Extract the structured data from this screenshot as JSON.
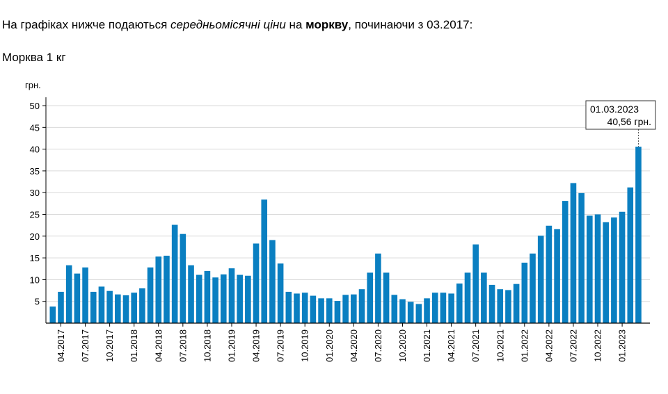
{
  "intro": {
    "part1": "На графіках нижче подаються ",
    "emph": "середньомісячні ціни",
    "part2": " на ",
    "strong": "моркву",
    "part3": ", починаючи з 03.2017:"
  },
  "subtitle": "Морква 1 кг",
  "colors": {
    "bar": "#0a7fc1",
    "grid": "#d9d9d9",
    "axis": "#000000"
  },
  "chart_data": {
    "type": "bar",
    "ylabel": "грн.",
    "ylim": [
      0,
      53.2
    ],
    "yticks": [
      5,
      10,
      15,
      20,
      25,
      30,
      35,
      40,
      45,
      50
    ],
    "grid": true,
    "xticks": [
      "04.2017",
      "07.2017",
      "10.2017",
      "01.2018",
      "04.2018",
      "07.2018",
      "10.2018",
      "01.2019",
      "04.2019",
      "07.2019",
      "10.2019",
      "01.2020",
      "04.2020",
      "07.2020",
      "10.2020",
      "01.2021",
      "04.2021",
      "07.2021",
      "10.2021",
      "01.2022",
      "04.2022",
      "07.2022",
      "10.2022",
      "01.2023"
    ],
    "first_month": "03.2017",
    "values": [
      3.8,
      7.2,
      13.3,
      11.4,
      12.8,
      7.2,
      8.4,
      7.4,
      6.6,
      6.4,
      7.0,
      8.0,
      12.8,
      15.3,
      15.5,
      22.6,
      20.5,
      13.3,
      11.1,
      12.0,
      10.5,
      11.2,
      12.6,
      11.1,
      10.9,
      18.3,
      28.4,
      19.1,
      13.7,
      7.2,
      6.8,
      7.0,
      6.3,
      5.7,
      5.7,
      5.1,
      6.5,
      6.6,
      7.8,
      11.6,
      16.0,
      11.6,
      6.5,
      5.5,
      4.9,
      4.4,
      5.7,
      7.0,
      7.0,
      6.8,
      9.1,
      11.6,
      18.1,
      11.6,
      8.8,
      7.8,
      7.6,
      9.0,
      13.9,
      16.0,
      20.1,
      22.4,
      21.6,
      28.1,
      32.2,
      29.9,
      24.7,
      25.0,
      23.2,
      24.3,
      25.6,
      31.2,
      40.56
    ],
    "tooltip": {
      "date": "01.03.2023",
      "value": "40,56 грн."
    }
  }
}
